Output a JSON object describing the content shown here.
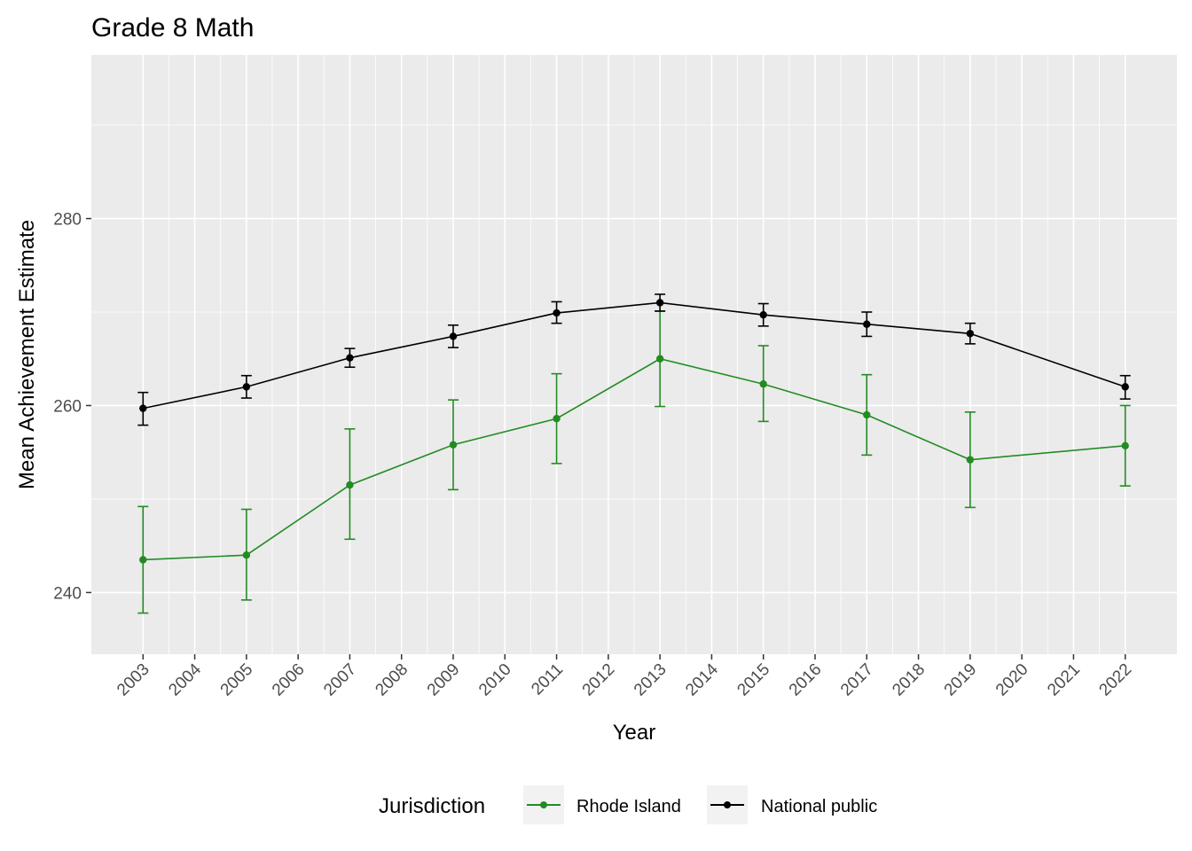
{
  "chart_data": {
    "type": "line",
    "title": "Grade 8 Math",
    "xlabel": "Year",
    "ylabel": "Mean Achievement Estimate",
    "xlim": [
      2002,
      2023
    ],
    "ylim": [
      233.4,
      297.5
    ],
    "x_ticks": [
      2003,
      2004,
      2005,
      2006,
      2007,
      2008,
      2009,
      2010,
      2011,
      2012,
      2013,
      2014,
      2015,
      2016,
      2017,
      2018,
      2019,
      2020,
      2021,
      2022
    ],
    "y_ticks": [
      240,
      260,
      280
    ],
    "y_minor": [
      250,
      270,
      290
    ],
    "grid": true,
    "legend": {
      "title": "Jurisdiction",
      "position": "bottom"
    },
    "series": [
      {
        "name": "Rhode Island",
        "color": "#228b22",
        "x": [
          2003,
          2005,
          2007,
          2009,
          2011,
          2013,
          2015,
          2017,
          2019,
          2022
        ],
        "values": [
          243.5,
          244.0,
          251.5,
          255.8,
          258.6,
          265.0,
          262.3,
          259.0,
          254.2,
          255.7
        ],
        "lower": [
          237.8,
          239.2,
          245.7,
          251.0,
          253.8,
          259.9,
          258.3,
          254.7,
          249.1,
          251.4
        ],
        "upper": [
          249.2,
          248.9,
          257.5,
          260.6,
          263.4,
          270.1,
          266.4,
          263.3,
          259.3,
          260.0
        ]
      },
      {
        "name": "National public",
        "color": "#000000",
        "x": [
          2003,
          2005,
          2007,
          2009,
          2011,
          2013,
          2015,
          2017,
          2019,
          2022
        ],
        "values": [
          259.7,
          262.0,
          265.1,
          267.4,
          269.9,
          271.0,
          269.7,
          268.7,
          267.7,
          262.0
        ],
        "lower": [
          257.9,
          260.8,
          264.1,
          266.2,
          268.8,
          270.1,
          268.5,
          267.4,
          266.6,
          260.7
        ],
        "upper": [
          261.4,
          263.2,
          266.1,
          268.6,
          271.1,
          271.9,
          270.9,
          270.0,
          268.8,
          263.2
        ]
      }
    ]
  }
}
